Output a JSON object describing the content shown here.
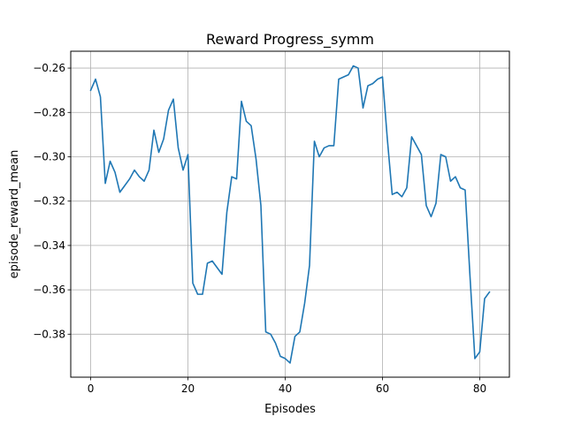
{
  "chart_data": {
    "type": "line",
    "title": "Reward Progress_symm",
    "xlabel": "Episodes",
    "ylabel": "episode_reward_mean",
    "xlim": [
      -4.1,
      86.1
    ],
    "ylim": [
      -0.3994,
      -0.2524
    ],
    "xticks": [
      0,
      20,
      40,
      60,
      80
    ],
    "yticks": [
      -0.38,
      -0.36,
      -0.34,
      -0.32,
      -0.3,
      -0.28,
      -0.26
    ],
    "grid": true,
    "series": [
      {
        "color": "#1f77b4",
        "x": [
          0,
          1,
          2,
          3,
          4,
          5,
          6,
          7,
          8,
          9,
          10,
          11,
          12,
          13,
          14,
          15,
          16,
          17,
          18,
          19,
          20,
          21,
          22,
          23,
          24,
          25,
          26,
          27,
          28,
          29,
          30,
          31,
          32,
          33,
          34,
          35,
          36,
          37,
          38,
          39,
          40,
          41,
          42,
          43,
          44,
          45,
          46,
          47,
          48,
          49,
          50,
          51,
          52,
          53,
          54,
          55,
          56,
          57,
          58,
          59,
          60,
          61,
          62,
          63,
          64,
          65,
          66,
          67,
          68,
          69,
          70,
          71,
          72,
          73,
          74,
          75,
          76,
          77,
          78,
          79,
          80,
          81,
          82
        ],
        "y": [
          -0.27,
          -0.265,
          -0.273,
          -0.312,
          -0.302,
          -0.307,
          -0.316,
          -0.313,
          -0.31,
          -0.306,
          -0.309,
          -0.311,
          -0.306,
          -0.288,
          -0.298,
          -0.292,
          -0.279,
          -0.274,
          -0.296,
          -0.306,
          -0.299,
          -0.357,
          -0.362,
          -0.362,
          -0.348,
          -0.347,
          -0.35,
          -0.353,
          -0.325,
          -0.309,
          -0.31,
          -0.275,
          -0.284,
          -0.286,
          -0.301,
          -0.322,
          -0.379,
          -0.38,
          -0.384,
          -0.39,
          -0.391,
          -0.393,
          -0.381,
          -0.379,
          -0.366,
          -0.349,
          -0.293,
          -0.3,
          -0.296,
          -0.295,
          -0.295,
          -0.265,
          -0.264,
          -0.263,
          -0.259,
          -0.26,
          -0.278,
          -0.268,
          -0.267,
          -0.265,
          -0.264,
          -0.292,
          -0.317,
          -0.316,
          -0.318,
          -0.314,
          -0.291,
          -0.295,
          -0.299,
          -0.322,
          -0.327,
          -0.321,
          -0.299,
          -0.3,
          -0.311,
          -0.309,
          -0.314,
          -0.315,
          -0.354,
          -0.391,
          -0.388,
          -0.364,
          -0.361
        ]
      }
    ]
  }
}
